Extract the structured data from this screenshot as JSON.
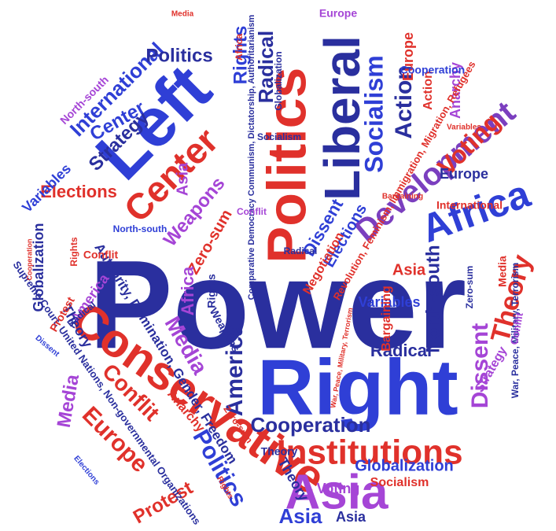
{
  "colors": {
    "background": "#ffffff",
    "blue": "#2f3fd6",
    "navy": "#2a2f9e",
    "red": "#e0312b",
    "purple": "#a545d6",
    "violet": "#7b3fbf"
  },
  "words": {
    "power": "Power",
    "left": "Left",
    "right": "Right",
    "conservative": "Conservative",
    "liberal": "Liberal",
    "politics": "Politics",
    "asia": "Asia",
    "africa": "Africa",
    "institutions": "Institutions",
    "center": "Center",
    "development": "Development",
    "america": "America",
    "socialism": "Socialism",
    "action": "Action",
    "international": "International",
    "voting": "Voting",
    "theory": "Theory",
    "dissent": "Dissent",
    "cooperation": "Cooperation",
    "media": "Media",
    "europe": "Europe",
    "conflit": "Conflit",
    "radical": "Radical",
    "elections": "Elections",
    "weapons": "Weapons",
    "globalization": "Globalization",
    "protest": "Protest",
    "strategy": "Strategy",
    "zero_sum": "Zero-sum",
    "rights": "Rights",
    "variables": "Variables",
    "anarchy": "Anarchy",
    "bargaining": "Bargaining",
    "north_south": "North-south",
    "negotiation": "Negotiation",
    "authority": "Authority, Domination, Gender, Freedom",
    "comparative": "Comparative Democracy Communism, Dictatorship, Authoritarianism",
    "revolution": "Revolution, Feminism, Immigration, Migration, Refugees",
    "war": "War, Peace, Military, Terrorism",
    "supreme": "Supreme Court, United Nations, Non-governmental Organizations"
  }
}
